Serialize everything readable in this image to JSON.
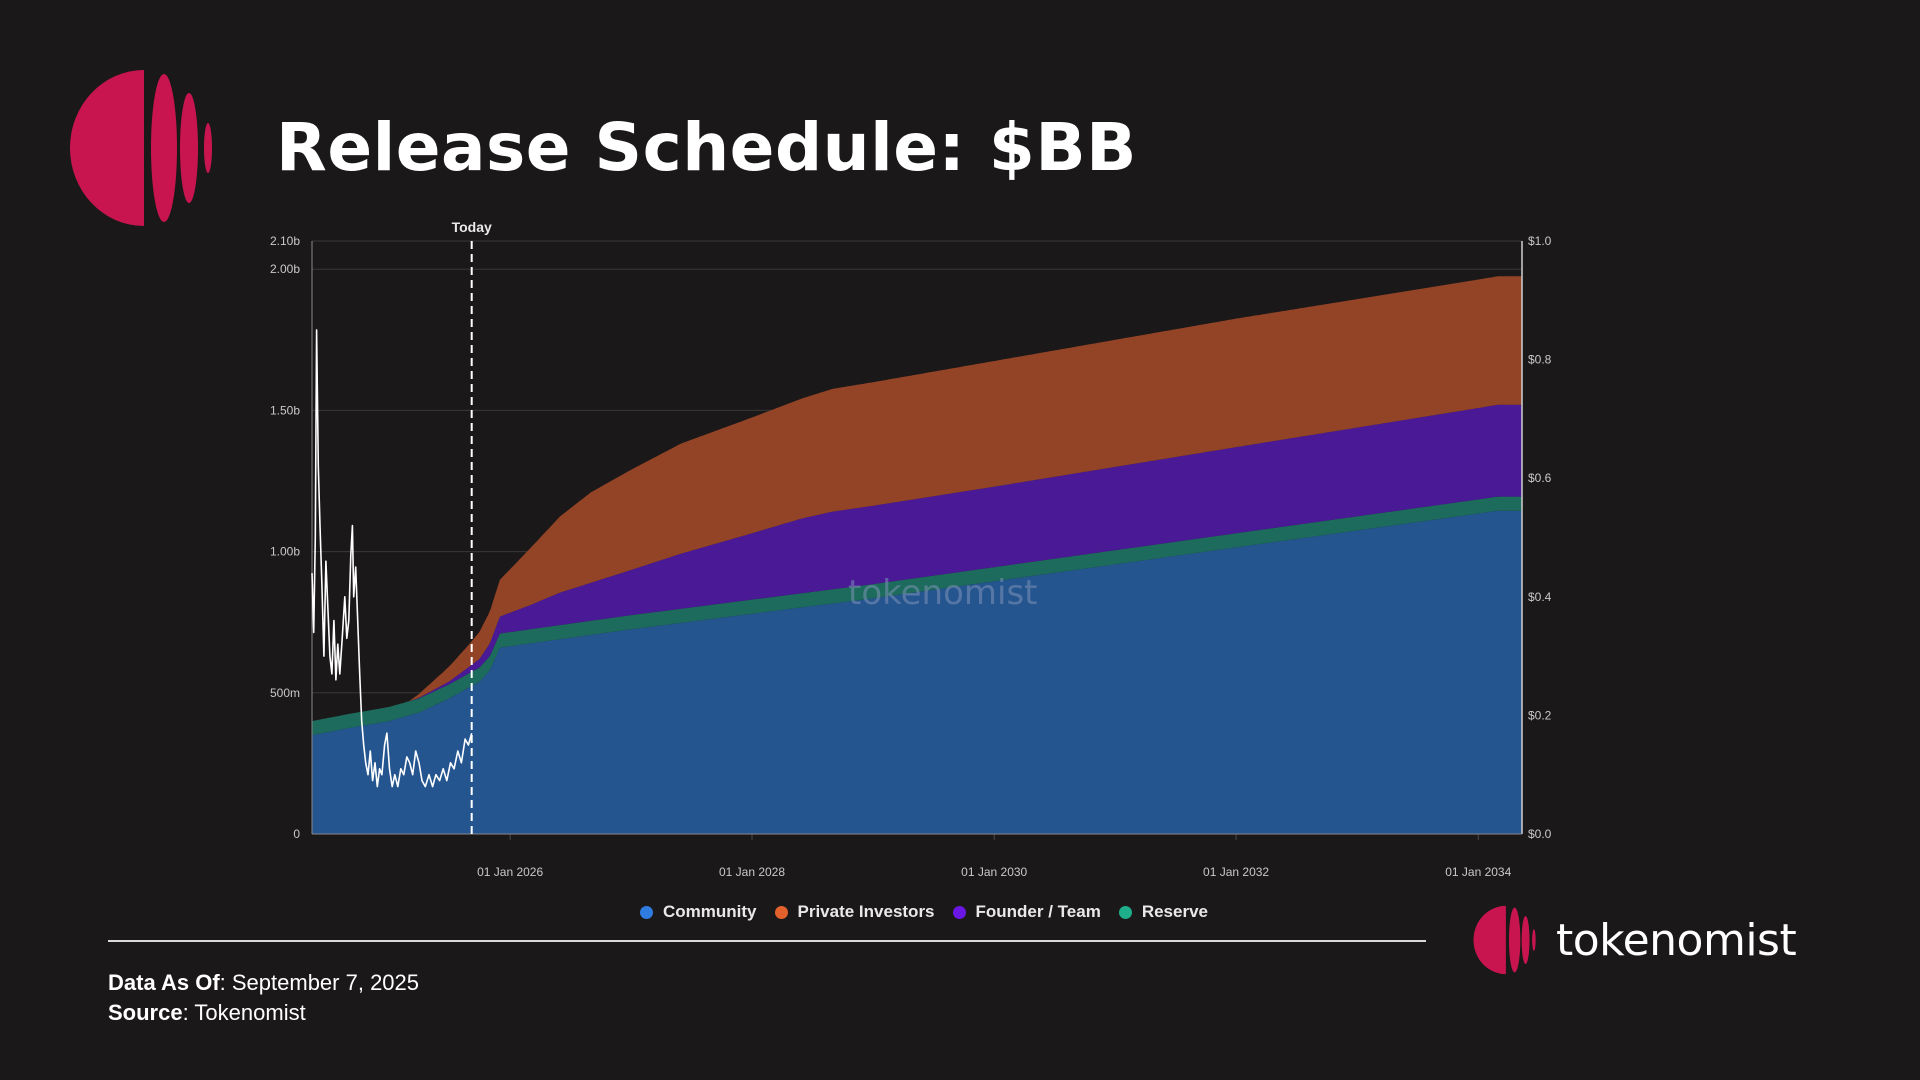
{
  "header": {
    "title": "Release Schedule: $BB"
  },
  "colors": {
    "background": "#1b1819",
    "brand": "#c8154f",
    "community": "#24558f",
    "reserve": "#1c6b5c",
    "founder_team": "#4a1a96",
    "private_investors": "#934426",
    "price_line": "#ffffff"
  },
  "icons": [
    "tokenomist-logo-mark",
    "tokenomist-footer-logo"
  ],
  "chart_data": {
    "type": "area",
    "stacked": true,
    "x_type": "date",
    "x_ticks": [
      "01 Jan 2026",
      "01 Jan 2028",
      "01 Jan 2030",
      "01 Jan 2032",
      "01 Jan 2034"
    ],
    "xlim": [
      "2024-05-13",
      "2034-05-13"
    ],
    "y_left_ticks": [
      "0",
      "500m",
      "1.00b",
      "1.50b",
      "2.00b",
      "2.10b"
    ],
    "y_left_tick_values": [
      0,
      500000000,
      1000000000,
      1500000000,
      2000000000,
      2100000000
    ],
    "ylim": [
      0,
      2100000000
    ],
    "y_right_ticks": [
      "$0.0",
      "$0.2",
      "$0.4",
      "$0.6",
      "$0.8",
      "$1.0"
    ],
    "y_right_tick_values": [
      0,
      0.2,
      0.4,
      0.6,
      0.8,
      1.0
    ],
    "y_right_lim": [
      0,
      1.0
    ],
    "grid": true,
    "legend_position": "bottom-center",
    "watermark": "tokenomist",
    "annotation": {
      "label": "Today",
      "x": "2025-09-07"
    },
    "series": [
      {
        "name": "Community",
        "color": "#24558f",
        "points": [
          [
            "2024-05-13",
            350000000
          ],
          [
            "2024-09-01",
            375000000
          ],
          [
            "2025-01-01",
            400000000
          ],
          [
            "2025-04-01",
            430000000
          ],
          [
            "2025-07-01",
            480000000
          ],
          [
            "2025-10-01",
            540000000
          ],
          [
            "2025-11-01",
            580000000
          ],
          [
            "2025-12-01",
            660000000
          ],
          [
            "2026-06-01",
            690000000
          ],
          [
            "2027-01-01",
            725000000
          ],
          [
            "2028-01-01",
            780000000
          ],
          [
            "2029-01-01",
            835000000
          ],
          [
            "2030-01-01",
            895000000
          ],
          [
            "2031-01-01",
            955000000
          ],
          [
            "2032-01-01",
            1015000000
          ],
          [
            "2033-01-01",
            1075000000
          ],
          [
            "2034-01-01",
            1135000000
          ],
          [
            "2034-03-01",
            1145000000
          ],
          [
            "2034-05-13",
            1145000000
          ]
        ]
      },
      {
        "name": "Reserve",
        "color": "#1c6b5c",
        "points": [
          [
            "2024-05-13",
            50000000
          ],
          [
            "2025-09-01",
            50000000
          ],
          [
            "2025-12-01",
            50000000
          ],
          [
            "2034-05-13",
            50000000
          ]
        ]
      },
      {
        "name": "Founder / Team",
        "color": "#4a1a96",
        "points": [
          [
            "2024-05-13",
            0
          ],
          [
            "2025-03-01",
            0
          ],
          [
            "2025-07-01",
            10000000
          ],
          [
            "2025-10-01",
            30000000
          ],
          [
            "2025-12-01",
            60000000
          ],
          [
            "2026-03-01",
            85000000
          ],
          [
            "2026-06-01",
            115000000
          ],
          [
            "2027-01-01",
            160000000
          ],
          [
            "2027-06-01",
            195000000
          ],
          [
            "2028-01-01",
            235000000
          ],
          [
            "2028-06-01",
            265000000
          ],
          [
            "2028-09-01",
            275000000
          ],
          [
            "2030-01-01",
            285000000
          ],
          [
            "2032-01-01",
            305000000
          ],
          [
            "2034-03-01",
            325000000
          ],
          [
            "2034-05-13",
            325000000
          ]
        ]
      },
      {
        "name": "Private Investors",
        "color": "#934426",
        "points": [
          [
            "2024-05-13",
            0
          ],
          [
            "2025-03-01",
            0
          ],
          [
            "2025-06-01",
            40000000
          ],
          [
            "2025-09-01",
            80000000
          ],
          [
            "2025-12-01",
            130000000
          ],
          [
            "2026-03-01",
            200000000
          ],
          [
            "2026-06-01",
            270000000
          ],
          [
            "2026-09-01",
            320000000
          ],
          [
            "2027-01-01",
            355000000
          ],
          [
            "2027-06-01",
            390000000
          ],
          [
            "2028-01-01",
            410000000
          ],
          [
            "2028-06-01",
            425000000
          ],
          [
            "2028-09-01",
            435000000
          ],
          [
            "2030-01-01",
            445000000
          ],
          [
            "2032-01-01",
            455000000
          ],
          [
            "2034-05-13",
            455000000
          ]
        ]
      }
    ],
    "price_series": {
      "name": "Price",
      "axis": "right",
      "color": "#ffffff",
      "points": [
        [
          "2024-05-13",
          0.44
        ],
        [
          "2024-05-18",
          0.34
        ],
        [
          "2024-05-23",
          0.5
        ],
        [
          "2024-05-27",
          0.85
        ],
        [
          "2024-06-01",
          0.62
        ],
        [
          "2024-06-06",
          0.52
        ],
        [
          "2024-06-12",
          0.42
        ],
        [
          "2024-06-18",
          0.3
        ],
        [
          "2024-06-24",
          0.46
        ],
        [
          "2024-06-30",
          0.38
        ],
        [
          "2024-07-06",
          0.3
        ],
        [
          "2024-07-12",
          0.27
        ],
        [
          "2024-07-18",
          0.36
        ],
        [
          "2024-07-24",
          0.26
        ],
        [
          "2024-07-30",
          0.32
        ],
        [
          "2024-08-05",
          0.27
        ],
        [
          "2024-08-12",
          0.33
        ],
        [
          "2024-08-20",
          0.4
        ],
        [
          "2024-08-26",
          0.33
        ],
        [
          "2024-09-01",
          0.36
        ],
        [
          "2024-09-07",
          0.47
        ],
        [
          "2024-09-12",
          0.52
        ],
        [
          "2024-09-16",
          0.4
        ],
        [
          "2024-09-22",
          0.45
        ],
        [
          "2024-09-28",
          0.36
        ],
        [
          "2024-10-04",
          0.27
        ],
        [
          "2024-10-10",
          0.19
        ],
        [
          "2024-10-16",
          0.15
        ],
        [
          "2024-10-22",
          0.12
        ],
        [
          "2024-10-29",
          0.1
        ],
        [
          "2024-11-05",
          0.14
        ],
        [
          "2024-11-12",
          0.09
        ],
        [
          "2024-11-19",
          0.12
        ],
        [
          "2024-11-26",
          0.08
        ],
        [
          "2024-12-03",
          0.11
        ],
        [
          "2024-12-10",
          0.1
        ],
        [
          "2024-12-18",
          0.15
        ],
        [
          "2024-12-25",
          0.17
        ],
        [
          "2025-01-02",
          0.11
        ],
        [
          "2025-01-10",
          0.08
        ],
        [
          "2025-01-18",
          0.1
        ],
        [
          "2025-01-27",
          0.08
        ],
        [
          "2025-02-05",
          0.11
        ],
        [
          "2025-02-14",
          0.1
        ],
        [
          "2025-02-23",
          0.13
        ],
        [
          "2025-03-04",
          0.12
        ],
        [
          "2025-03-13",
          0.1
        ],
        [
          "2025-03-22",
          0.14
        ],
        [
          "2025-04-01",
          0.12
        ],
        [
          "2025-04-10",
          0.09
        ],
        [
          "2025-04-20",
          0.08
        ],
        [
          "2025-05-01",
          0.1
        ],
        [
          "2025-05-12",
          0.08
        ],
        [
          "2025-05-22",
          0.1
        ],
        [
          "2025-06-02",
          0.09
        ],
        [
          "2025-06-13",
          0.11
        ],
        [
          "2025-06-24",
          0.09
        ],
        [
          "2025-07-05",
          0.12
        ],
        [
          "2025-07-16",
          0.11
        ],
        [
          "2025-07-27",
          0.14
        ],
        [
          "2025-08-07",
          0.12
        ],
        [
          "2025-08-18",
          0.16
        ],
        [
          "2025-08-28",
          0.15
        ],
        [
          "2025-09-07",
          0.17
        ]
      ]
    }
  },
  "legend": {
    "items": [
      {
        "label": "Community",
        "color": "#2f7ce0"
      },
      {
        "label": "Private Investors",
        "color": "#e3622b"
      },
      {
        "label": "Founder / Team",
        "color": "#6a17e6"
      },
      {
        "label": "Reserve",
        "color": "#1fae8c"
      }
    ]
  },
  "footer": {
    "data_as_of_label": "Data As Of",
    "data_as_of_value": ": September 7, 2025",
    "source_label": "Source",
    "source_value": ": Tokenomist",
    "logo_text": "tokenomist"
  }
}
